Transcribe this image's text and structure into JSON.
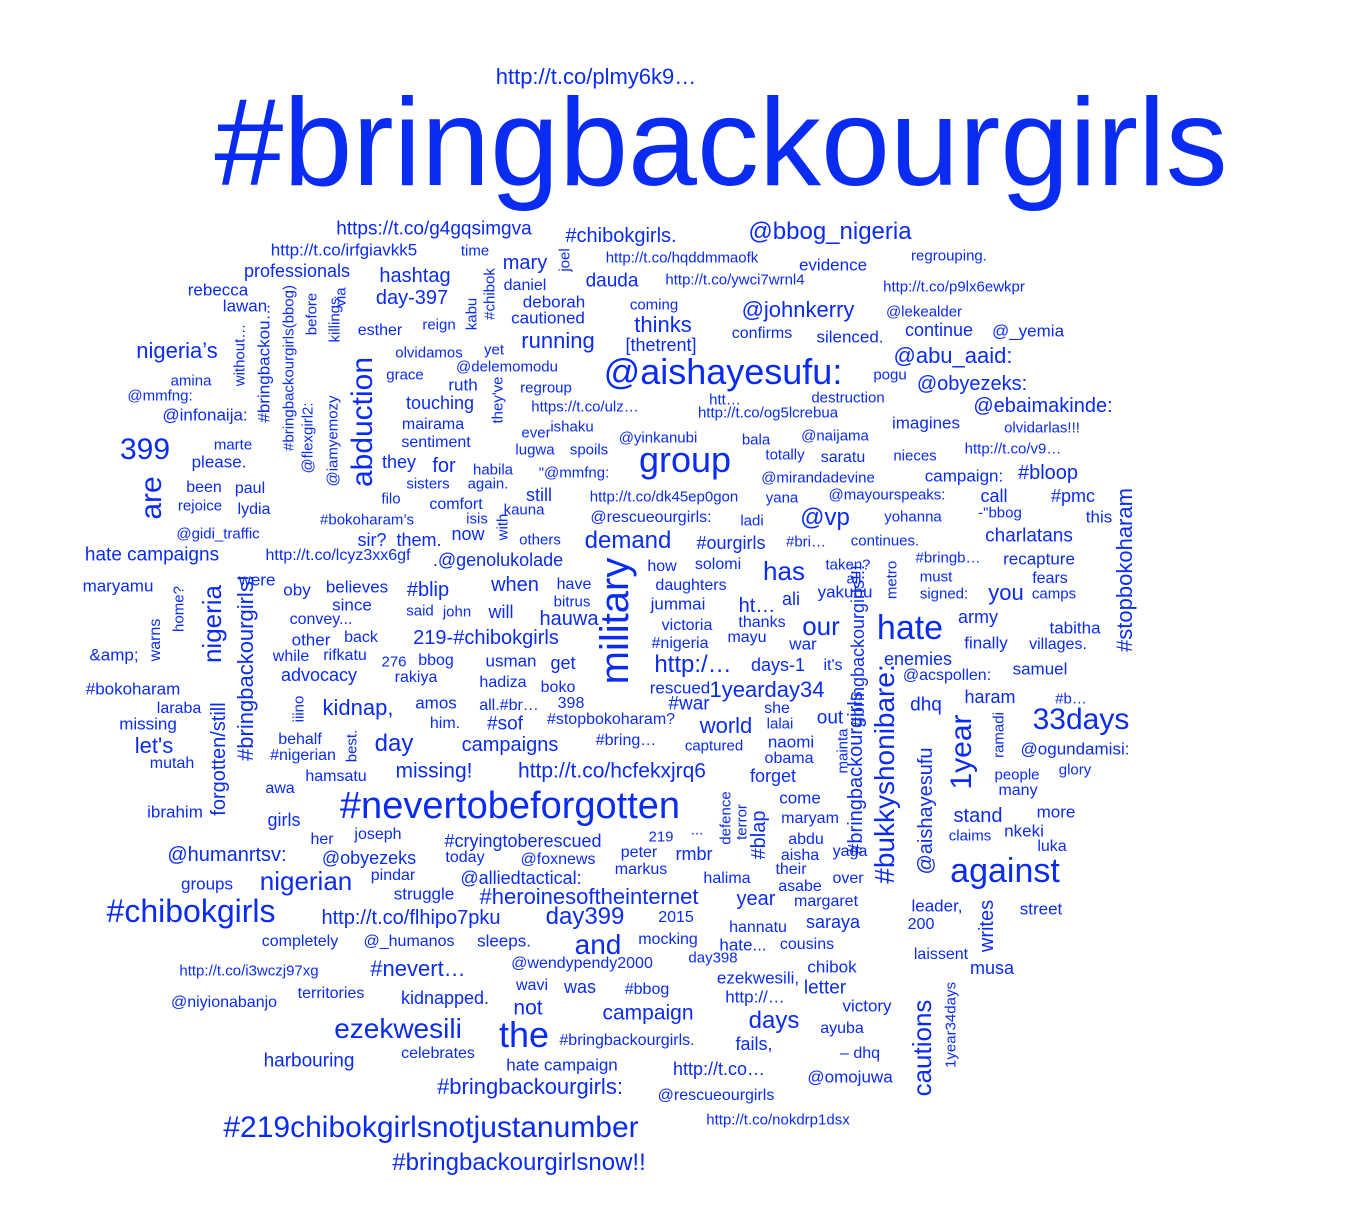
{
  "cloud": {
    "color": "#0a2cf2",
    "background": "#ffffff",
    "words": [
      "#bringbackourgirls",
      "http://t.co/plmy6k9…",
      "https://t.co/g4gqsimgva",
      "#chibokgirls.",
      "@bbog_nigeria",
      "http://t.co/irfgiavkk5",
      "time",
      "http://t.co/hqddmmaofk",
      "regrouping.",
      "professionals",
      "hashtag",
      "mary",
      "evidence",
      "rebecca",
      "lawan",
      "day-397",
      "daniel",
      "dauda",
      "http://t.co/ywci7wrnl4",
      "http://t.co/p9lx6ewkpr",
      "deborah",
      "coming",
      "@johnkerry",
      "@lekealder",
      "cautioned",
      "thinks",
      "confirms",
      "silenced.",
      "continue",
      "@_yemia",
      "esther",
      "reign",
      "running",
      "[thetrent]",
      "nigeria’s",
      "olvidamos",
      "yet",
      "@delemomodu",
      "@abu_aaid:",
      "@aishayesufu:",
      "grace",
      "amina",
      "ruth",
      "regroup",
      "pogu",
      "@obyezeks:",
      "@mmfng:",
      "touching",
      "https://t.co/ulz…",
      "htt…",
      "destruction",
      "@infonaija:",
      "mairama",
      "ishaku",
      "http://t.co/og5lcrebua",
      "@ebaimakinde:",
      "imagines",
      "ever",
      "olvidarlas!!!",
      "marte",
      "sentiment",
      "lugwa",
      "@yinkanubi",
      "bala",
      "@naijama",
      "399",
      "spoils",
      "group",
      "totally",
      "saratu",
      "nieces",
      "http://t.co/v9…",
      "please.",
      "they",
      "for",
      "habila",
      "\"@mmfng:",
      "@mirandadevine",
      "campaign:",
      "#bloop",
      "been",
      "paul",
      "sisters",
      "again.",
      "still",
      "@mayourspeaks:",
      "call",
      "#pmc",
      "rejoice",
      "lydia",
      "filo",
      "comfort",
      "kauna",
      "http://t.co/dk45ep0gon",
      "yana",
      "-\"bbog",
      "this",
      "@gidi_traffic",
      "#bokoharam’s",
      "isis",
      "@rescueourgirls:",
      "ladi",
      "@vp",
      "yohanna",
      "now",
      "demand",
      "charlatans",
      "sir?",
      "them.",
      "#ourgirls",
      "#bri…",
      "continues.",
      "hate campaigns",
      "http://t.co/lcyz3xx6gf",
      ".@genolukolade",
      "solomi",
      "#bringb…",
      "recapture",
      "maryamu",
      "were",
      "how",
      "has",
      "taken?",
      "all",
      "must",
      "fears",
      "oby",
      "believes",
      "#blip",
      "when",
      "have",
      "daughters",
      "signed:",
      "you",
      "camps",
      "since",
      "bitrus",
      "yakubu",
      "convey...",
      "said",
      "john",
      "will",
      "hauwa",
      "jummai",
      "ht…",
      "ali",
      "army",
      "other",
      "back",
      "219-#chibokgirls",
      "victoria",
      "thanks",
      "our",
      "hate",
      "tabitha",
      "&amp;",
      "#nigeria",
      "mayu",
      "war",
      "finally",
      "villages.",
      "while",
      "rifkatu",
      "276",
      "bbog",
      "usman",
      "get",
      "http:/…",
      "days-1",
      "it's",
      "enemies",
      "samuel",
      "advocacy",
      "rakiya",
      "#bokoharam",
      "hadiza",
      "boko",
      "rescued",
      "1yearday34",
      "@acspollen:",
      "haram",
      "#b…",
      "amos",
      "398",
      "#war",
      "she",
      "dhq",
      "laraba",
      "kidnap,",
      "all.#br…",
      "out",
      "33days",
      "missing",
      "him.",
      "#sof",
      "#stopbokoharam?",
      "world",
      "lalai",
      "let's",
      "behalf",
      "day",
      "campaigns",
      "#bring…",
      "captured",
      "naomi",
      "@ogundamisi:",
      "mutah",
      "#nigerian",
      "obama",
      "glory",
      "hamsatu",
      "missing!",
      "http://t.co/hcfekxjrq6",
      "forget",
      "people",
      "awa",
      "many",
      "#nevertobeforgotten",
      "come",
      "ibrahim",
      "stand",
      "more",
      "girls",
      "maryam",
      "claims",
      "nkeki",
      "her",
      "joseph",
      "219",
      "#cryingtoberescued",
      "...",
      "abdu",
      "luka",
      "@humanrtsv:",
      "peter",
      "rmbr",
      "aisha",
      "yaga",
      "@obyezeks",
      "today",
      "@foxnews",
      "against",
      "markus",
      "their",
      "pindar",
      "@alliedtactical:",
      "halima",
      "over",
      "groups",
      "nigerian",
      "asabe",
      "struggle",
      "#heroinesoftheinternet",
      "year",
      "margaret",
      "leader,",
      "street",
      "#chibokgirls",
      "http://t.co/flhipo7pku",
      "day399",
      "2015",
      "saraya",
      "200",
      "hannatu",
      "completely",
      "@_humanos",
      "sleeps.",
      "and",
      "mocking",
      "hate...",
      "cousins",
      "day398",
      "laissent",
      "http://t.co/i3wczj97xg",
      "#nevert…",
      "@wendypendy2000",
      "chibok",
      "musa",
      "ezekwesili,",
      "territories",
      "wavi",
      "was",
      "#bbog",
      "letter",
      "kidnapped.",
      "http://…",
      "@niyionabanjo",
      "not",
      "victory",
      "ezekwesili",
      "the",
      "campaign",
      "days",
      "ayuba",
      "#bringbackourgirls.",
      "fails,",
      "celebrates",
      "– dhq",
      "harbouring",
      "hate campaign",
      "http://t.co…",
      "@omojuwa",
      "#bringbackourgirls:",
      "@rescueourgirls",
      "http://t.co/nokdrp1dsx",
      "#219chibokgirlsnotjustanumber",
      "#bringbackourgirlsnow!!",
      "joel",
      "#chibok",
      "kabu",
      "via",
      "killings",
      "before",
      "#bringbackourgirls(bbog)",
      "#bringbackou…",
      "without…",
      "@flexgirl2:",
      "@iamyemozy",
      "abduction",
      "they've",
      "with",
      "are",
      "#bringbackourgirls!",
      "nigeria",
      "forgotten/still",
      "home?",
      "warns",
      "iiino",
      "best.",
      "military",
      "#bringbackourgirls!!!",
      "metro",
      "#bukkyshonibare:",
      "#stopbokoharam",
      "1year",
      "@aishayesufu",
      "ramadi",
      "mainta",
      "#bringbackourgirls",
      "defence",
      "terror",
      "#blap",
      "cautions",
      "writes",
      "1year34days",
      "others"
    ]
  }
}
